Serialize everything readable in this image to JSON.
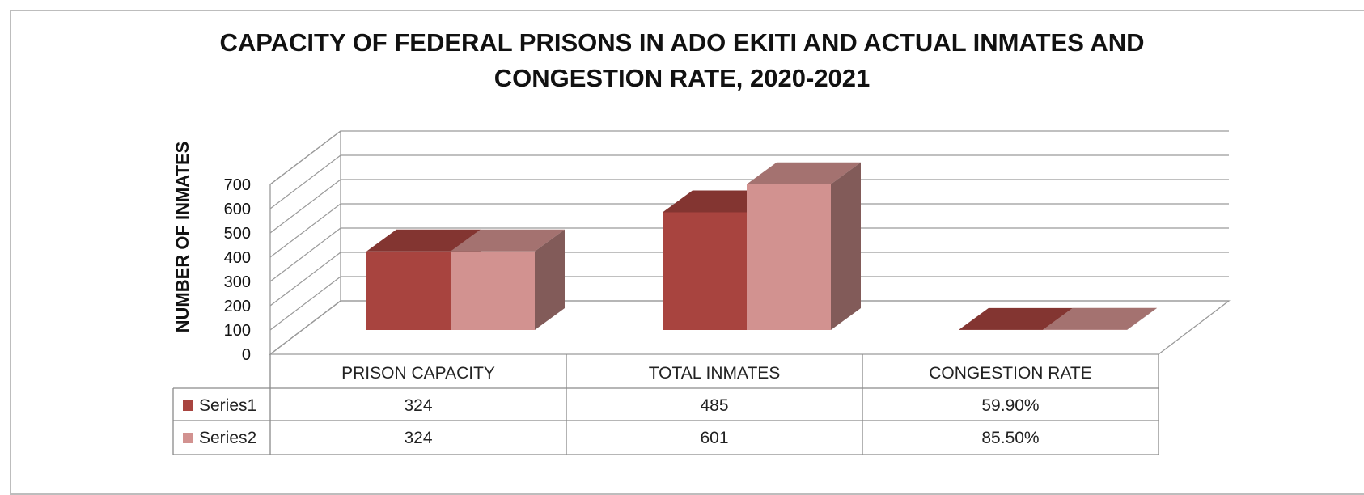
{
  "chart_data": {
    "type": "bar",
    "title_lines": [
      "CAPACITY OF FEDERAL PRISONS IN ADO EKITI AND ACTUAL INMATES AND",
      "CONGESTION RATE, 2020-2021"
    ],
    "xlabel": "",
    "ylabel": "NUMBER OF INMATES",
    "ylim": [
      0,
      700
    ],
    "yticks": [
      0,
      100,
      200,
      300,
      400,
      500,
      600,
      700
    ],
    "categories": [
      "PRISON CAPACITY",
      "TOTAL INMATES",
      "CONGESTION RATE"
    ],
    "series": [
      {
        "name": "Series1",
        "values": [
          324,
          485,
          0.599
        ],
        "labels": [
          "324",
          "485",
          "59.90%"
        ],
        "color": "#a8443f"
      },
      {
        "name": "Series2",
        "values": [
          324,
          601,
          0.855
        ],
        "labels": [
          "324",
          "601",
          "85.50%"
        ],
        "color": "#d29290"
      }
    ],
    "grid": true,
    "legend": "data-table",
    "style": "3d-clustered-column"
  }
}
